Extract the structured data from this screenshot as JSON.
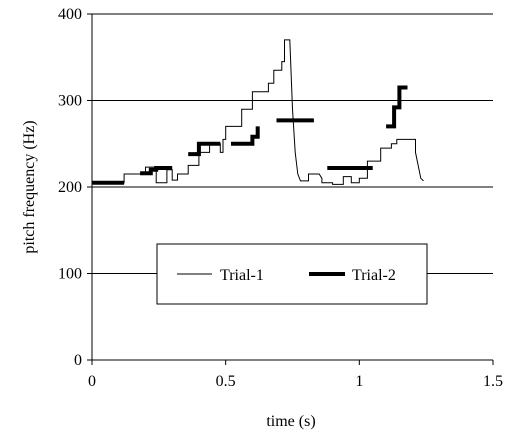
{
  "chart_data": {
    "type": "line",
    "title": "",
    "xlabel": "time (s)",
    "ylabel": "pitch frequency (Hz)",
    "xlim": [
      0,
      1.5
    ],
    "ylim": [
      0,
      400
    ],
    "xticks": [
      0,
      0.5,
      1,
      1.5
    ],
    "xtick_labels": [
      "0",
      "0.5",
      "1",
      "1.5"
    ],
    "yticks": [
      0,
      100,
      200,
      300,
      400
    ],
    "ytick_labels": [
      "0",
      "100",
      "200",
      "300",
      "400"
    ],
    "grid": "horizontal",
    "legend": {
      "placement": "center-lower"
    },
    "series": [
      {
        "name": "Trial-1",
        "style": "thin-line",
        "color": "#000000",
        "points": [
          [
            0.0,
            205
          ],
          [
            0.12,
            205
          ],
          [
            0.12,
            215
          ],
          [
            0.2,
            215
          ],
          [
            0.2,
            223
          ],
          [
            0.24,
            223
          ],
          [
            0.24,
            205
          ],
          [
            0.28,
            205
          ],
          [
            0.28,
            220
          ],
          [
            0.3,
            220
          ],
          [
            0.3,
            208
          ],
          [
            0.32,
            208
          ],
          [
            0.32,
            215
          ],
          [
            0.36,
            215
          ],
          [
            0.36,
            225
          ],
          [
            0.4,
            225
          ],
          [
            0.4,
            240
          ],
          [
            0.44,
            240
          ],
          [
            0.44,
            250
          ],
          [
            0.48,
            250
          ],
          [
            0.48,
            240
          ],
          [
            0.49,
            240
          ],
          [
            0.49,
            255
          ],
          [
            0.5,
            255
          ],
          [
            0.5,
            270
          ],
          [
            0.56,
            270
          ],
          [
            0.56,
            290
          ],
          [
            0.6,
            290
          ],
          [
            0.6,
            310
          ],
          [
            0.66,
            310
          ],
          [
            0.66,
            320
          ],
          [
            0.68,
            320
          ],
          [
            0.68,
            335
          ],
          [
            0.71,
            335
          ],
          [
            0.71,
            345
          ],
          [
            0.72,
            345
          ],
          [
            0.72,
            370
          ],
          [
            0.74,
            370
          ],
          [
            0.75,
            290
          ],
          [
            0.76,
            240
          ],
          [
            0.77,
            215
          ],
          [
            0.78,
            207
          ],
          [
            0.81,
            207
          ],
          [
            0.81,
            215
          ],
          [
            0.85,
            215
          ],
          [
            0.86,
            210
          ],
          [
            0.86,
            205
          ],
          [
            0.9,
            205
          ],
          [
            0.9,
            203
          ],
          [
            0.94,
            203
          ],
          [
            0.94,
            212
          ],
          [
            0.97,
            212
          ],
          [
            0.97,
            205
          ],
          [
            1.0,
            205
          ],
          [
            1.0,
            210
          ],
          [
            1.03,
            210
          ],
          [
            1.03,
            230
          ],
          [
            1.08,
            230
          ],
          [
            1.08,
            245
          ],
          [
            1.12,
            245
          ],
          [
            1.12,
            250
          ],
          [
            1.14,
            250
          ],
          [
            1.14,
            255
          ],
          [
            1.21,
            255
          ],
          [
            1.21,
            240
          ],
          [
            1.23,
            210
          ],
          [
            1.24,
            207
          ]
        ]
      },
      {
        "name": "Trial-2",
        "style": "thick-segments",
        "color": "#000000",
        "segments": [
          [
            [
              0.0,
              205
            ],
            [
              0.12,
              205
            ]
          ],
          [
            [
              0.18,
              216
            ],
            [
              0.22,
              216
            ],
            [
              0.22,
              220
            ],
            [
              0.24,
              220
            ],
            [
              0.24,
              222
            ],
            [
              0.3,
              222
            ]
          ],
          [
            [
              0.36,
              238
            ],
            [
              0.4,
              238
            ],
            [
              0.4,
              250
            ],
            [
              0.48,
              250
            ]
          ],
          [
            [
              0.52,
              250
            ],
            [
              0.6,
              250
            ],
            [
              0.6,
              258
            ],
            [
              0.62,
              258
            ],
            [
              0.62,
              270
            ]
          ],
          [
            [
              0.69,
              277
            ],
            [
              0.83,
              277
            ]
          ],
          [
            [
              0.88,
              222
            ],
            [
              1.05,
              222
            ]
          ],
          [
            [
              1.1,
              270
            ],
            [
              1.13,
              270
            ],
            [
              1.13,
              292
            ],
            [
              1.15,
              292
            ],
            [
              1.15,
              315
            ],
            [
              1.18,
              315
            ]
          ]
        ]
      }
    ]
  }
}
